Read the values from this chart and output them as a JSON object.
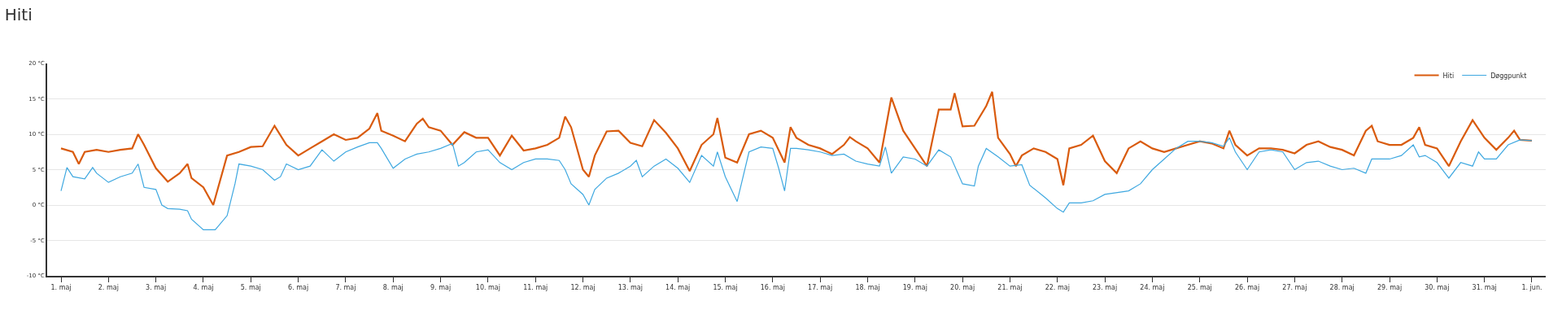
{
  "chart_data": {
    "type": "line",
    "title": "Hiti",
    "xlim": [
      "--04-30T17:00",
      "--06-01T07:00"
    ],
    "xticks": [
      {
        "value": "--05-01",
        "label": "1. maj"
      },
      {
        "value": "--05-02",
        "label": "2. maj"
      },
      {
        "value": "--05-03",
        "label": "3. maj"
      },
      {
        "value": "--05-04",
        "label": "4. maj"
      },
      {
        "value": "--05-05",
        "label": "5. maj"
      },
      {
        "value": "--05-06",
        "label": "6. maj"
      },
      {
        "value": "--05-07",
        "label": "7. maj"
      },
      {
        "value": "--05-08",
        "label": "8. maj"
      },
      {
        "value": "--05-09",
        "label": "9. maj"
      },
      {
        "value": "--05-10",
        "label": "10. maj"
      },
      {
        "value": "--05-11",
        "label": "11. maj"
      },
      {
        "value": "--05-12",
        "label": "12. maj"
      },
      {
        "value": "--05-13",
        "label": "13. maj"
      },
      {
        "value": "--05-14",
        "label": "14. maj"
      },
      {
        "value": "--05-15",
        "label": "15. maj"
      },
      {
        "value": "--05-16",
        "label": "16. maj"
      },
      {
        "value": "--05-17",
        "label": "17. maj"
      },
      {
        "value": "--05-18",
        "label": "18. maj"
      },
      {
        "value": "--05-19",
        "label": "19. maj"
      },
      {
        "value": "--05-20",
        "label": "20. maj"
      },
      {
        "value": "--05-21",
        "label": "21. maj"
      },
      {
        "value": "--05-22",
        "label": "22. maj"
      },
      {
        "value": "--05-23",
        "label": "23. maj"
      },
      {
        "value": "--05-24",
        "label": "24. maj"
      },
      {
        "value": "--05-25",
        "label": "25. maj"
      },
      {
        "value": "--05-26",
        "label": "26. maj"
      },
      {
        "value": "--05-27",
        "label": "27. maj"
      },
      {
        "value": "--05-28",
        "label": "28. maj"
      },
      {
        "value": "--05-29",
        "label": "29. maj"
      },
      {
        "value": "--05-30",
        "label": "30. maj"
      },
      {
        "value": "--05-31",
        "label": "31. maj"
      },
      {
        "value": "--06-01",
        "label": "1. jun."
      }
    ],
    "ylim": [
      -10,
      20
    ],
    "yticks": [
      {
        "value": -10,
        "label": "-10 °C"
      },
      {
        "value": -5,
        "label": "-5 °C"
      },
      {
        "value": 0,
        "label": "0 °C"
      },
      {
        "value": 5,
        "label": "5 °C"
      },
      {
        "value": 10,
        "label": "10 °C"
      },
      {
        "value": 15,
        "label": "15 °C"
      },
      {
        "value": 20,
        "label": "20 °C"
      }
    ],
    "grid": "y",
    "legend": "top right",
    "marker": "none",
    "line_style": "solid",
    "series": [
      {
        "name": "Hiti",
        "color": "#d95b0e",
        "x": [
          "--05-01T00:00",
          "--05-01T06:00",
          "--05-01T09:00",
          "--05-01T12:00",
          "--05-01T18:00",
          "--05-02T00:00",
          "--05-02T06:00",
          "--05-02T12:00",
          "--05-02T15:00",
          "--05-02T18:00",
          "--05-03T00:00",
          "--05-03T06:00",
          "--05-03T12:00",
          "--05-03T16:00",
          "--05-03T18:00",
          "--05-04T00:00",
          "--05-04T05:00",
          "--05-04T12:00",
          "--05-04T18:00",
          "--05-05T00:00",
          "--05-05T06:00",
          "--05-05T12:00",
          "--05-05T18:00",
          "--05-06T00:00",
          "--05-06T06:00",
          "--05-06T12:00",
          "--05-06T18:00",
          "--05-07T00:00",
          "--05-07T06:00",
          "--05-07T12:00",
          "--05-07T16:00",
          "--05-07T18:00",
          "--05-08T00:00",
          "--05-08T06:00",
          "--05-08T12:00",
          "--05-08T15:00",
          "--05-08T18:00",
          "--05-09T00:00",
          "--05-09T06:00",
          "--05-09T12:00",
          "--05-09T18:00",
          "--05-10T00:00",
          "--05-10T06:00",
          "--05-10T12:00",
          "--05-10T18:00",
          "--05-11T00:00",
          "--05-11T06:00",
          "--05-11T12:00",
          "--05-11T15:00",
          "--05-11T18:00",
          "--05-12T00:00",
          "--05-12T03:00",
          "--05-12T06:00",
          "--05-12T12:00",
          "--05-12T18:00",
          "--05-13T00:00",
          "--05-13T06:00",
          "--05-13T12:00",
          "--05-13T18:00",
          "--05-14T00:00",
          "--05-14T06:00",
          "--05-14T12:00",
          "--05-14T18:00",
          "--05-14T20:00",
          "--05-15T00:00",
          "--05-15T06:00",
          "--05-15T12:00",
          "--05-15T18:00",
          "--05-16T00:00",
          "--05-16T06:00",
          "--05-16T09:00",
          "--05-16T12:00",
          "--05-16T18:00",
          "--05-17T00:00",
          "--05-17T06:00",
          "--05-17T12:00",
          "--05-17T15:00",
          "--05-17T18:00",
          "--05-18T00:00",
          "--05-18T06:00",
          "--05-18T12:00",
          "--05-18T18:00",
          "--05-19T00:00",
          "--05-19T06:00",
          "--05-19T12:00",
          "--05-19T18:00",
          "--05-19T20:00",
          "--05-20T00:00",
          "--05-20T06:00",
          "--05-20T12:00",
          "--05-20T15:00",
          "--05-20T18:00",
          "--05-21T00:00",
          "--05-21T03:00",
          "--05-21T06:00",
          "--05-21T12:00",
          "--05-21T18:00",
          "--05-22T00:00",
          "--05-22T03:00",
          "--05-22T06:00",
          "--05-22T12:00",
          "--05-22T18:00",
          "--05-23T00:00",
          "--05-23T06:00",
          "--05-23T12:00",
          "--05-23T18:00",
          "--05-24T00:00",
          "--05-24T06:00",
          "--05-24T12:00",
          "--05-24T18:00",
          "--05-25T00:00",
          "--05-25T06:00",
          "--05-25T12:00",
          "--05-25T15:00",
          "--05-25T18:00",
          "--05-26T00:00",
          "--05-26T06:00",
          "--05-26T12:00",
          "--05-26T18:00",
          "--05-27T00:00",
          "--05-27T06:00",
          "--05-27T12:00",
          "--05-27T18:00",
          "--05-28T00:00",
          "--05-28T06:00",
          "--05-28T12:00",
          "--05-28T15:00",
          "--05-28T18:00",
          "--05-29T00:00",
          "--05-29T06:00",
          "--05-29T12:00",
          "--05-29T15:00",
          "--05-29T18:00",
          "--05-30T00:00",
          "--05-30T06:00",
          "--05-30T12:00",
          "--05-30T18:00",
          "--05-31T00:00",
          "--05-31T06:00",
          "--05-31T12:00",
          "--05-31T15:00",
          "--05-31T18:00",
          "--06-01T00:00"
        ],
        "values": [
          8.0,
          7.5,
          5.8,
          7.5,
          7.8,
          7.5,
          7.8,
          8.0,
          10.0,
          8.5,
          5.2,
          3.3,
          4.5,
          5.8,
          3.8,
          2.5,
          0.0,
          7.0,
          7.5,
          8.2,
          8.3,
          11.2,
          8.5,
          7.0,
          8.0,
          9.0,
          10.0,
          9.2,
          9.5,
          10.8,
          13.0,
          10.5,
          9.8,
          9.0,
          11.5,
          12.2,
          11.0,
          10.5,
          8.5,
          10.3,
          9.5,
          9.5,
          7.0,
          9.8,
          7.7,
          8.0,
          8.5,
          9.5,
          12.5,
          11.0,
          5.0,
          4.0,
          7.0,
          10.4,
          10.5,
          8.8,
          8.3,
          12.0,
          10.2,
          8.0,
          4.8,
          8.5,
          10.0,
          12.3,
          6.7,
          6.0,
          10.0,
          10.5,
          9.5,
          6.0,
          11.0,
          9.5,
          8.5,
          8.0,
          7.2,
          8.5,
          9.6,
          9.0,
          8.0,
          6.0,
          15.2,
          10.5,
          8.0,
          5.5,
          13.5,
          13.5,
          15.8,
          11.1,
          11.2,
          14.0,
          16.0,
          9.5,
          7.2,
          5.5,
          7.0,
          8.0,
          7.5,
          6.5,
          2.8,
          8.0,
          8.5,
          9.8,
          6.2,
          4.5,
          8.0,
          9.0,
          8.0,
          7.5,
          8.0,
          8.5,
          9.0,
          8.7,
          8.0,
          10.5,
          8.5,
          7.0,
          8.0,
          8.0,
          7.8,
          7.3,
          8.5,
          9.0,
          8.2,
          7.8,
          7.0,
          10.5,
          11.2,
          9.0,
          8.5,
          8.5,
          9.5,
          11.0,
          8.5,
          8.0,
          5.5,
          9.0,
          12.0,
          9.5,
          7.8,
          9.5,
          10.5,
          9.2,
          9.1
        ]
      },
      {
        "name": "Døggpunkt",
        "color": "#3fa8e0",
        "x": [
          "--05-01T00:00",
          "--05-01T03:00",
          "--05-01T06:00",
          "--05-01T12:00",
          "--05-01T16:00",
          "--05-01T18:00",
          "--05-02T00:00",
          "--05-02T06:00",
          "--05-02T12:00",
          "--05-02T15:00",
          "--05-02T18:00",
          "--05-03T00:00",
          "--05-03T03:00",
          "--05-03T06:00",
          "--05-03T12:00",
          "--05-03T16:00",
          "--05-03T18:00",
          "--05-04T00:00",
          "--05-04T06:00",
          "--05-04T12:00",
          "--05-04T16:00",
          "--05-04T18:00",
          "--05-05T00:00",
          "--05-05T06:00",
          "--05-05T12:00",
          "--05-05T15:00",
          "--05-05T18:00",
          "--05-06T00:00",
          "--05-06T06:00",
          "--05-06T12:00",
          "--05-06T18:00",
          "--05-07T00:00",
          "--05-07T06:00",
          "--05-07T12:00",
          "--05-07T16:00",
          "--05-07T18:00",
          "--05-08T00:00",
          "--05-08T06:00",
          "--05-08T12:00",
          "--05-08T18:00",
          "--05-09T00:00",
          "--05-09T06:00",
          "--05-09T09:00",
          "--05-09T12:00",
          "--05-09T18:00",
          "--05-10T00:00",
          "--05-10T06:00",
          "--05-10T12:00",
          "--05-10T18:00",
          "--05-11T00:00",
          "--05-11T06:00",
          "--05-11T12:00",
          "--05-11T15:00",
          "--05-11T18:00",
          "--05-12T00:00",
          "--05-12T03:00",
          "--05-12T06:00",
          "--05-12T12:00",
          "--05-12T18:00",
          "--05-13T00:00",
          "--05-13T03:00",
          "--05-13T06:00",
          "--05-13T12:00",
          "--05-13T18:00",
          "--05-14T00:00",
          "--05-14T06:00",
          "--05-14T12:00",
          "--05-14T18:00",
          "--05-14T20:00",
          "--05-15T00:00",
          "--05-15T06:00",
          "--05-15T12:00",
          "--05-15T18:00",
          "--05-16T00:00",
          "--05-16T03:00",
          "--05-16T06:00",
          "--05-16T09:00",
          "--05-16T12:00",
          "--05-16T18:00",
          "--05-17T00:00",
          "--05-17T06:00",
          "--05-17T12:00",
          "--05-17T18:00",
          "--05-18T00:00",
          "--05-18T06:00",
          "--05-18T09:00",
          "--05-18T12:00",
          "--05-18T18:00",
          "--05-19T00:00",
          "--05-19T06:00",
          "--05-19T12:00",
          "--05-19T18:00",
          "--05-20T00:00",
          "--05-20T06:00",
          "--05-20T08:00",
          "--05-20T12:00",
          "--05-20T18:00",
          "--05-21T00:00",
          "--05-21T06:00",
          "--05-21T10:00",
          "--05-21T18:00",
          "--05-22T00:00",
          "--05-22T03:00",
          "--05-22T06:00",
          "--05-22T12:00",
          "--05-22T18:00",
          "--05-23T00:00",
          "--05-23T12:00",
          "--05-23T18:00",
          "--05-24T00:00",
          "--05-24T06:00",
          "--05-24T12:00",
          "--05-24T18:00",
          "--05-25T00:00",
          "--05-25T06:00",
          "--05-25T12:00",
          "--05-25T15:00",
          "--05-25T18:00",
          "--05-26T00:00",
          "--05-26T06:00",
          "--05-26T12:00",
          "--05-26T18:00",
          "--05-27T00:00",
          "--05-27T06:00",
          "--05-27T12:00",
          "--05-27T18:00",
          "--05-28T00:00",
          "--05-28T06:00",
          "--05-28T12:00",
          "--05-28T15:00",
          "--05-28T18:00",
          "--05-29T00:00",
          "--05-29T06:00",
          "--05-29T12:00",
          "--05-29T15:00",
          "--05-29T18:00",
          "--05-30T00:00",
          "--05-30T06:00",
          "--05-30T12:00",
          "--05-30T18:00",
          "--05-30T21:00",
          "--05-31T00:00",
          "--05-31T06:00",
          "--05-31T12:00",
          "--05-31T18:00",
          "--06-01T00:00"
        ],
        "values": [
          2.0,
          5.3,
          4.0,
          3.7,
          5.3,
          4.5,
          3.2,
          4.0,
          4.5,
          5.8,
          2.5,
          2.2,
          0.0,
          -0.5,
          -0.6,
          -0.8,
          -2.0,
          -3.5,
          -3.5,
          -1.5,
          3.0,
          5.8,
          5.5,
          5.0,
          3.5,
          4.0,
          5.8,
          5.0,
          5.5,
          7.8,
          6.2,
          7.5,
          8.2,
          8.8,
          8.8,
          8.0,
          5.2,
          6.5,
          7.2,
          7.5,
          8.0,
          8.7,
          5.5,
          6.0,
          7.5,
          7.8,
          6.0,
          5.0,
          6.0,
          6.5,
          6.5,
          6.3,
          5.0,
          3.0,
          1.5,
          0.0,
          2.2,
          3.8,
          4.5,
          5.5,
          6.3,
          4.0,
          5.5,
          6.5,
          5.2,
          3.2,
          7.0,
          5.5,
          7.5,
          4.0,
          0.5,
          7.5,
          8.2,
          8.0,
          5.2,
          2.0,
          8.0,
          8.0,
          7.8,
          7.5,
          7.0,
          7.2,
          6.2,
          5.8,
          5.5,
          8.2,
          4.5,
          6.8,
          6.5,
          5.5,
          7.8,
          6.8,
          3.0,
          2.7,
          5.5,
          8.0,
          6.8,
          5.5,
          5.7,
          2.8,
          1.0,
          -0.5,
          -1.0,
          0.3,
          0.3,
          0.6,
          1.5,
          2.0,
          3.0,
          5.0,
          6.5,
          8.0,
          9.0,
          9.0,
          8.8,
          8.3,
          9.5,
          7.5,
          5.0,
          7.5,
          7.8,
          7.5,
          5.0,
          6.0,
          6.2,
          5.5,
          5.0,
          5.2,
          4.5,
          6.5,
          6.5,
          6.5,
          7.0,
          8.5,
          6.8,
          7.0,
          6.0,
          3.8,
          6.0,
          5.5,
          7.5,
          6.5,
          6.5,
          8.5,
          9.2,
          9.1
        ]
      }
    ]
  }
}
